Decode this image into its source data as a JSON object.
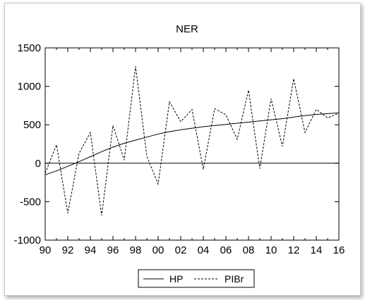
{
  "chart_data": {
    "type": "line",
    "title": "NER",
    "xlabel": "",
    "ylabel": "",
    "x_tick_labels": [
      "90",
      "92",
      "94",
      "96",
      "98",
      "00",
      "02",
      "04",
      "06",
      "08",
      "10",
      "12",
      "14",
      "16"
    ],
    "y_tick_labels": [
      "1500",
      "1000",
      "500",
      "0",
      "-500",
      "-1000"
    ],
    "ylim": [
      -1000,
      1500
    ],
    "grid": false,
    "zero_line": true,
    "legend_position": "bottom-center",
    "x": [
      1990,
      1991,
      1992,
      1993,
      1994,
      1995,
      1996,
      1997,
      1998,
      1999,
      2000,
      2001,
      2002,
      2003,
      2004,
      2005,
      2006,
      2007,
      2008,
      2009,
      2010,
      2011,
      2012,
      2013,
      2014,
      2015,
      2016
    ],
    "series": [
      {
        "name": "HP",
        "style": "solid",
        "values": [
          -150,
          -100,
          -40,
          20,
          85,
          150,
          210,
          260,
          300,
          340,
          380,
          410,
          435,
          455,
          475,
          490,
          505,
          520,
          535,
          550,
          565,
          580,
          600,
          620,
          635,
          645,
          655
        ]
      },
      {
        "name": "PIBr",
        "style": "dashed",
        "values": [
          -130,
          240,
          -650,
          130,
          400,
          -680,
          490,
          40,
          1260,
          90,
          -270,
          800,
          540,
          700,
          -80,
          710,
          630,
          310,
          950,
          -70,
          840,
          220,
          1100,
          400,
          700,
          590,
          650
        ]
      }
    ]
  }
}
